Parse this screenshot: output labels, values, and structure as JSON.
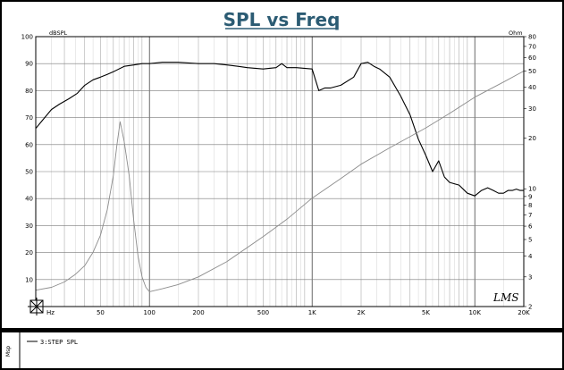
{
  "window": {
    "title": "SPL vs Freq",
    "left_unit": "dBSPL",
    "right_unit": "Ohm",
    "signature": "LMS",
    "legend_side_label": "Msp",
    "legend_entry": "3:STEP SPL"
  },
  "chart_data": {
    "type": "line",
    "title": "SPL vs Freq",
    "xlabel": "",
    "ylabel": "dBSPL",
    "y2label": "Ohm",
    "xscale": "log",
    "xlim": [
      20,
      20000
    ],
    "ylim": [
      0,
      100
    ],
    "y2scale": "log",
    "y2lim": [
      2,
      80
    ],
    "grid": true,
    "x_tick_labels": [
      "Hz",
      "50",
      "100",
      "200",
      "500",
      "1K",
      "2K",
      "5K",
      "10K",
      "20K"
    ],
    "x_tick_values": [
      20,
      50,
      100,
      200,
      500,
      1000,
      2000,
      5000,
      10000,
      20000
    ],
    "y_tick_labels": [
      "10",
      "20",
      "30",
      "40",
      "50",
      "60",
      "70",
      "80",
      "90",
      "100"
    ],
    "y_tick_values": [
      10,
      20,
      30,
      40,
      50,
      60,
      70,
      80,
      90,
      100
    ],
    "y2_tick_labels": [
      "80",
      "70",
      "60",
      "50",
      "40",
      "30",
      "20",
      "10",
      "9",
      "8",
      "7",
      "6",
      "5",
      "4",
      "3",
      "2"
    ],
    "y2_tick_values": [
      80,
      70,
      60,
      50,
      40,
      30,
      20,
      10,
      9,
      8,
      7,
      6,
      5,
      4,
      3,
      2
    ],
    "series": [
      {
        "name": "3:STEP SPL",
        "axis": "left",
        "color": "#000000",
        "x": [
          20,
          22,
          25,
          28,
          32,
          36,
          40,
          45,
          50,
          55,
          60,
          70,
          80,
          90,
          100,
          120,
          150,
          200,
          250,
          300,
          350,
          400,
          500,
          600,
          650,
          700,
          800,
          1000,
          1100,
          1200,
          1300,
          1500,
          1800,
          2000,
          2200,
          2400,
          2600,
          3000,
          3500,
          4000,
          4500,
          5000,
          5500,
          6000,
          6500,
          7000,
          8000,
          9000,
          10000,
          11000,
          12000,
          13000,
          14000,
          15000,
          16000,
          17000,
          18000,
          19000,
          20000
        ],
        "y": [
          66,
          69,
          73,
          75,
          77,
          79,
          82,
          84,
          85,
          86,
          87,
          89,
          89.5,
          90,
          90,
          90.5,
          90.5,
          90,
          90,
          89.5,
          89,
          88.5,
          88,
          88.5,
          90,
          88.5,
          88.5,
          88,
          80,
          81,
          81,
          82,
          85,
          90,
          90.5,
          89,
          88,
          85,
          78,
          71,
          62,
          56,
          50,
          54,
          48,
          46,
          45,
          42,
          41,
          43,
          44,
          43,
          42,
          42,
          43,
          43,
          43.5,
          43,
          43
        ]
      },
      {
        "name": "",
        "axis": "right",
        "color": "#8c8c8c",
        "x": [
          20,
          25,
          30,
          35,
          40,
          45,
          50,
          55,
          60,
          63,
          66,
          70,
          75,
          80,
          85,
          90,
          95,
          100,
          110,
          120,
          150,
          200,
          300,
          500,
          700,
          1000,
          1500,
          2000,
          3000,
          5000,
          7000,
          10000,
          15000,
          20000
        ],
        "y": [
          2.5,
          2.6,
          2.8,
          3.1,
          3.5,
          4.2,
          5.3,
          7.5,
          12,
          18,
          25,
          19,
          12,
          6.5,
          4,
          3,
          2.6,
          2.45,
          2.5,
          2.55,
          2.7,
          3.0,
          3.7,
          5.2,
          6.6,
          8.8,
          11.5,
          14,
          17.5,
          23,
          28,
          35,
          43,
          50
        ]
      }
    ]
  }
}
